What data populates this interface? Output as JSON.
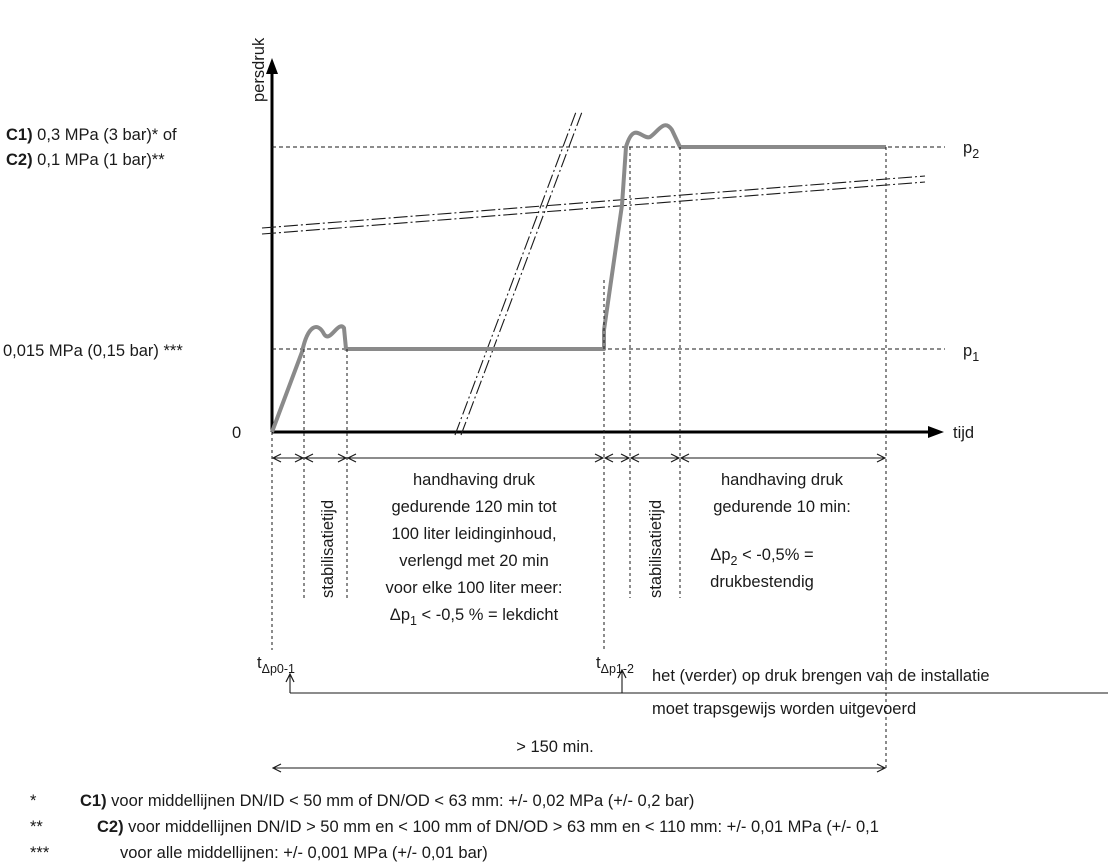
{
  "axes": {
    "y_label": "persdruk",
    "x_label": "tijd",
    "origin": "0"
  },
  "pressure_levels": {
    "upper_c1_tag": "C1)",
    "upper_c1_text": " 0,3 MPa (3 bar)* of",
    "upper_c2_tag": "C2)",
    "upper_c2_text": " 0,1 MPa (1 bar)**",
    "lower_text": "0,015 MPa  (0,15 bar) ***",
    "p1_label": "p",
    "p1_sub": "1",
    "p2_label": "p",
    "p2_sub": "2"
  },
  "phases": {
    "stab1": "stabilisatietijd",
    "stab2": "stabilisatietijd",
    "hold1_lines": [
      "handhaving druk",
      "gedurende  120 min tot",
      "100 liter leidinginhoud,",
      "verlengd met 20 min",
      "voor elke 100 liter meer:"
    ],
    "hold1_delta": "Δp",
    "hold1_delta_sub": "1",
    "hold1_delta_rest": " < -0,5 % = lekdicht",
    "hold2_lines": [
      "handhaving druk",
      "gedurende 10 min:"
    ],
    "hold2_delta": "Δp",
    "hold2_delta_sub": "2",
    "hold2_delta_rest": " < -0,5% =",
    "hold2_result": "drukbestendig"
  },
  "time_markers": {
    "t1_main": "t",
    "t1_sub": "Δp0-1",
    "t2_main": "t",
    "t2_sub": "Δp1-2"
  },
  "notes": {
    "step_line1": "het (verder) op druk brengen  van de installatie",
    "step_line2": "moet trapsgewijs  worden uitgevoerd",
    "total_time": "> 150 min."
  },
  "footnotes": [
    {
      "mark": "*",
      "tag": "C1)",
      "text": " voor middellijnen DN/ID < 50 mm of DN/OD < 63 mm: +/- 0,02 MPa  (+/- 0,2 bar)"
    },
    {
      "mark": "**",
      "tag": "C2)",
      "text": " voor middellijnen DN/ID > 50 mm en < 100 mm of  DN/OD > 63 mm en < 110 mm:  +/- 0,01 MPa  (+/- 0,1"
    },
    {
      "mark": "***",
      "tag": "",
      "text": "voor alle middellijnen:  +/- 0,001 MPa  (+/- 0,01 bar)"
    }
  ]
}
